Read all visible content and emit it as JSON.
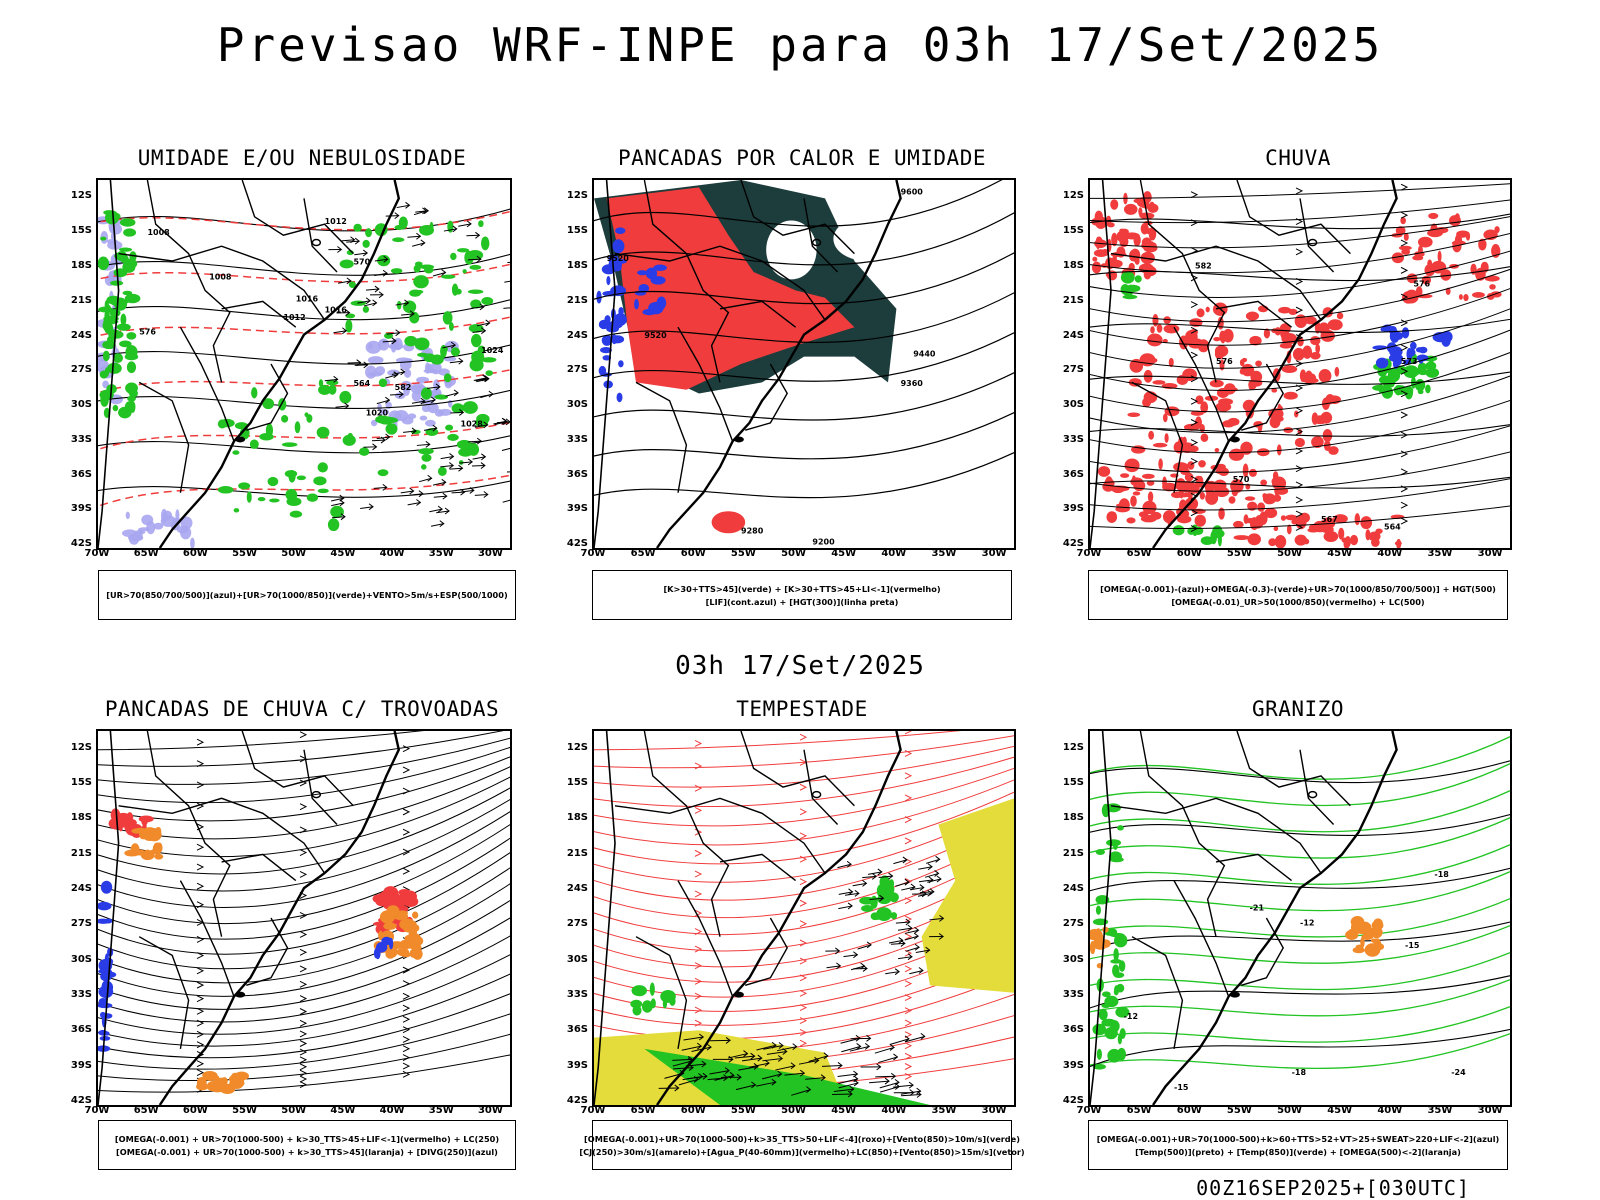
{
  "title": "Previsao WRF-INPE  para 03h 17/Set/2025",
  "mid_time": "03h 17/Set/2025",
  "run_label": "00Z16SEP2025+[030UTC]",
  "axes": {
    "lat_labels": [
      "12S",
      "15S",
      "18S",
      "21S",
      "24S",
      "27S",
      "30S",
      "33S",
      "36S",
      "39S",
      "42S"
    ],
    "lon_labels": [
      "70W",
      "65W",
      "60W",
      "55W",
      "50W",
      "45W",
      "40W",
      "35W",
      "30W"
    ],
    "lat_range": [
      -42,
      -10
    ],
    "lon_range": [
      -70,
      -28
    ]
  },
  "colors": {
    "blue_fill": "#a9a6ef",
    "green": "#22c322",
    "red": "#f03c3c",
    "dark_teal": "#1d3d3d",
    "yellow": "#e4dc3a",
    "orange": "#f08a2a",
    "blue": "#2a3ce6"
  },
  "panels": [
    {
      "id": "umidade",
      "title": "UMIDADE E/OU NEBULOSIDADE",
      "legend": [
        "[UR>70(850/700/500)](azul)+[UR>70(1000/850)](verde)+VENTO>5m/s+ESP(500/1000)"
      ],
      "contour_labels": [
        "1008",
        "1008",
        "1012",
        "1012",
        "1016",
        "1016",
        "1020",
        "1024",
        "1028",
        "564",
        "570",
        "576",
        "582"
      ]
    },
    {
      "id": "pancadas_calor",
      "title": "PANCADAS POR CALOR E UMIDADE",
      "legend": [
        "[K>30+TTS>45](verde) + [K>30+TTS>45+LI<-1](vermelho)",
        "[LIF](cont.azul) + [HGT(300)](linha preta)"
      ],
      "contour_labels": [
        "9600",
        "9520",
        "9520",
        "9440",
        "9360",
        "9280",
        "9200"
      ]
    },
    {
      "id": "chuva",
      "title": "CHUVA",
      "legend": [
        "[OMEGA(-0.001)-(azul)+OMEGA(-0.3)-(verde)+UR>70(1000/850/700/500)] + HGT(500)",
        "[OMEGA(-0.01)_UR>50(1000/850)(vermelho) + LC(500)"
      ],
      "contour_labels": [
        "582",
        "576",
        "576",
        "573",
        "570",
        "567",
        "564"
      ]
    },
    {
      "id": "trovoadas",
      "title": "PANCADAS DE CHUVA C/ TROVOADAS",
      "legend": [
        "[OMEGA(-0.001) + UR>70(1000-500) + k>30_TTS>45+LIF<-1](vermelho) + LC(250)",
        "[OMEGA(-0.001) + UR>70(1000-500) + k>30_TTS>45](laranja) + [DIVG(250)](azul)"
      ],
      "contour_labels": []
    },
    {
      "id": "tempestade",
      "title": "TEMPESTADE",
      "legend": [
        "[OMEGA(-0.001)+UR>70(1000-500)+k>35_TTS>50+LIF<-4](roxo)+[Vento(850)>10m/s](verde)",
        "[CJ(250)>30m/s](amarelo)+[Agua_P(40-60mm)](vermelho)+LC(850)+[Vento(850)>15m/s](vetor)"
      ],
      "contour_labels": []
    },
    {
      "id": "granizo",
      "title": "GRANIZO",
      "legend": [
        "[OMEGA(-0.001)+UR>70(1000-500)+k>60+TTS>52+VT>25+SWEAT>220+LIF<-2](azul)",
        "[Temp(500)](preto) + [Temp(850)](verde) + [OMEGA(500)<-2](laranja)"
      ],
      "contour_labels": [
        "-12",
        "-12",
        "-15",
        "-15",
        "-18",
        "-18",
        "-21",
        "-24"
      ]
    }
  ]
}
